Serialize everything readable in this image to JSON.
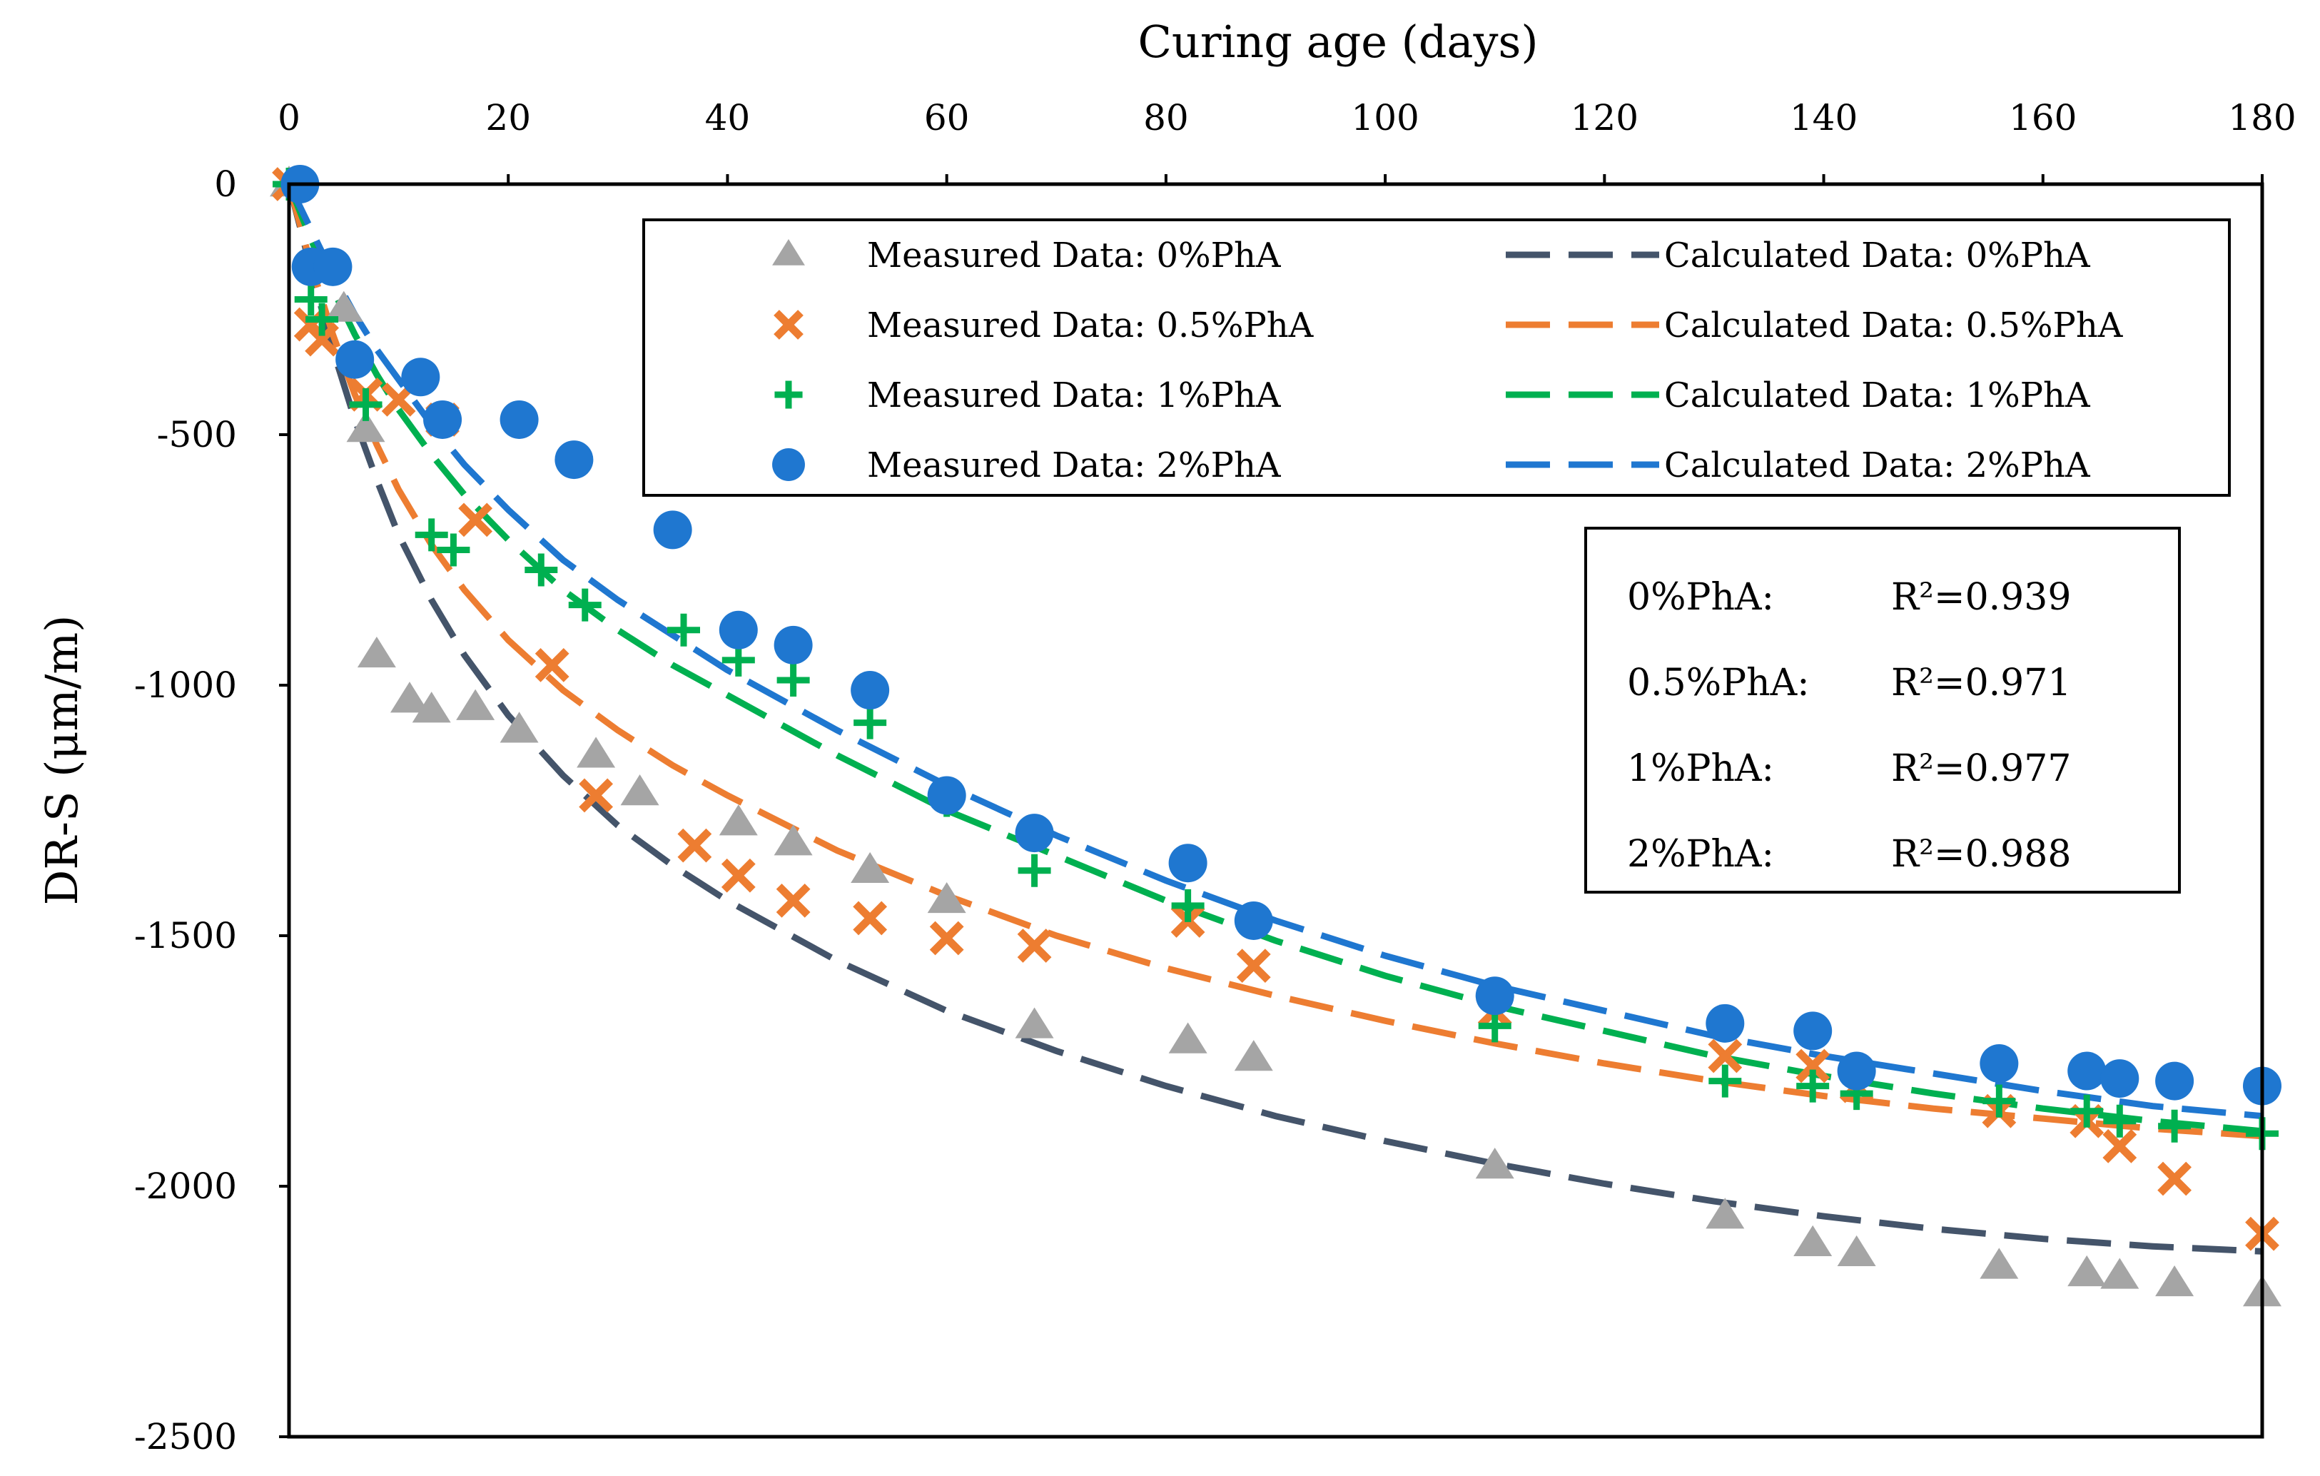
{
  "chart_data": {
    "type": "scatter",
    "title": "",
    "xlabel": "Curing age (days)",
    "ylabel": "DR-S (μm/m)",
    "xlim": [
      0,
      180
    ],
    "ylim": [
      -2500,
      0
    ],
    "x_ticks": [
      0,
      20,
      40,
      60,
      80,
      100,
      120,
      140,
      160,
      180
    ],
    "y_ticks": [
      0,
      -500,
      -1000,
      -1500,
      -2000,
      -2500
    ],
    "x_tick_labels": [
      "0",
      "20",
      "40",
      "60",
      "80",
      "100",
      "120",
      "140",
      "160",
      "180"
    ],
    "y_tick_labels": [
      "0",
      "-500",
      "-1000",
      "-1500",
      "-2000",
      "-2500"
    ],
    "x_axis_position": "top",
    "grid": false,
    "legend_position": "top-right",
    "series": [
      {
        "name": "Measured Data: 0%PhA",
        "kind": "measured",
        "marker": "triangle",
        "color": "#a5a5a5",
        "x": [
          0,
          5,
          7,
          8,
          11,
          13,
          17,
          21,
          28,
          32,
          41,
          46,
          53,
          60,
          68,
          82,
          88,
          110,
          131,
          139,
          143,
          156,
          164,
          167,
          172,
          180
        ],
        "y": [
          0,
          -250,
          -490,
          -940,
          -1030,
          -1050,
          -1045,
          -1090,
          -1140,
          -1215,
          -1275,
          -1315,
          -1370,
          -1430,
          -1680,
          -1710,
          -1745,
          -1960,
          -2060,
          -2115,
          -2135,
          -2160,
          -2175,
          -2180,
          -2195,
          -2215
        ]
      },
      {
        "name": "Measured Data: 0.5%PhA",
        "kind": "measured",
        "marker": "x",
        "color": "#ed7d31",
        "x": [
          0,
          2,
          3,
          7,
          10,
          14,
          17,
          24,
          28,
          37,
          41,
          46,
          53,
          60,
          68,
          82,
          88,
          110,
          131,
          139,
          143,
          156,
          164,
          167,
          172,
          180
        ],
        "y": [
          0,
          -280,
          -310,
          -420,
          -430,
          -470,
          -670,
          -960,
          -1220,
          -1320,
          -1380,
          -1430,
          -1465,
          -1505,
          -1520,
          -1470,
          -1560,
          -1650,
          -1740,
          -1760,
          -1800,
          -1850,
          -1870,
          -1920,
          -1985,
          -2095
        ]
      },
      {
        "name": "Measured Data: 1%PhA",
        "kind": "measured",
        "marker": "plus",
        "color": "#00b050",
        "x": [
          0,
          2,
          3,
          7,
          13,
          15,
          23,
          27,
          36,
          41,
          46,
          53,
          60,
          68,
          82,
          110,
          131,
          139,
          143,
          156,
          164,
          167,
          172,
          180
        ],
        "y": [
          0,
          -230,
          -270,
          -440,
          -700,
          -730,
          -770,
          -840,
          -890,
          -950,
          -990,
          -1075,
          -1230,
          -1370,
          -1440,
          -1680,
          -1790,
          -1800,
          -1815,
          -1830,
          -1850,
          -1870,
          -1880,
          -1895
        ]
      },
      {
        "name": "Measured Data: 2%PhA",
        "kind": "measured",
        "marker": "circle",
        "color": "#1f77d0",
        "x": [
          1,
          2,
          4,
          6,
          12,
          14,
          21,
          26,
          35,
          41,
          46,
          53,
          60,
          68,
          82,
          88,
          110,
          131,
          139,
          143,
          156,
          164,
          167,
          172,
          180
        ],
        "y": [
          0,
          -165,
          -165,
          -350,
          -385,
          -470,
          -470,
          -550,
          -690,
          -890,
          -920,
          -1010,
          -1220,
          -1295,
          -1355,
          -1470,
          -1620,
          -1675,
          -1690,
          -1770,
          -1755,
          -1770,
          -1785,
          -1790,
          -1800
        ]
      },
      {
        "name": "Calculated Data: 0%PhA",
        "kind": "calculated",
        "style": "dashed",
        "color": "#44546a",
        "x": [
          0,
          2,
          4,
          6,
          8,
          10,
          13,
          16,
          20,
          25,
          30,
          35,
          40,
          50,
          60,
          70,
          80,
          90,
          100,
          110,
          120,
          130,
          140,
          150,
          160,
          170,
          180
        ],
        "y": [
          0,
          -170,
          -330,
          -470,
          -590,
          -700,
          -830,
          -940,
          -1060,
          -1180,
          -1280,
          -1360,
          -1430,
          -1550,
          -1650,
          -1730,
          -1800,
          -1860,
          -1910,
          -1955,
          -1995,
          -2030,
          -2060,
          -2085,
          -2105,
          -2120,
          -2130
        ]
      },
      {
        "name": "Calculated Data: 0.5%PhA",
        "kind": "calculated",
        "style": "dashed",
        "color": "#ed7d31",
        "x": [
          0,
          2,
          4,
          6,
          8,
          10,
          13,
          16,
          20,
          25,
          30,
          35,
          40,
          50,
          60,
          70,
          80,
          90,
          100,
          110,
          120,
          130,
          140,
          150,
          160,
          170,
          180
        ],
        "y": [
          0,
          -160,
          -300,
          -420,
          -520,
          -610,
          -720,
          -810,
          -910,
          -1010,
          -1090,
          -1160,
          -1220,
          -1330,
          -1420,
          -1500,
          -1565,
          -1620,
          -1670,
          -1715,
          -1755,
          -1790,
          -1820,
          -1845,
          -1865,
          -1885,
          -1900
        ]
      },
      {
        "name": "Calculated Data: 1%PhA",
        "kind": "calculated",
        "style": "dashed",
        "color": "#00b050",
        "x": [
          0,
          2,
          4,
          6,
          8,
          10,
          13,
          16,
          20,
          25,
          30,
          35,
          40,
          50,
          60,
          70,
          80,
          90,
          100,
          110,
          120,
          130,
          140,
          150,
          160,
          170,
          180
        ],
        "y": [
          0,
          -110,
          -210,
          -300,
          -380,
          -450,
          -540,
          -620,
          -710,
          -810,
          -890,
          -960,
          -1020,
          -1140,
          -1250,
          -1340,
          -1430,
          -1510,
          -1580,
          -1640,
          -1690,
          -1740,
          -1780,
          -1815,
          -1845,
          -1870,
          -1890
        ]
      },
      {
        "name": "Calculated Data: 2%PhA",
        "kind": "calculated",
        "style": "dashed",
        "color": "#1f77d0",
        "x": [
          0,
          2,
          4,
          6,
          8,
          10,
          13,
          16,
          20,
          25,
          30,
          35,
          40,
          50,
          60,
          70,
          80,
          90,
          100,
          110,
          120,
          130,
          140,
          150,
          160,
          170,
          180
        ],
        "y": [
          0,
          -90,
          -180,
          -260,
          -330,
          -390,
          -480,
          -560,
          -650,
          -750,
          -830,
          -900,
          -970,
          -1090,
          -1200,
          -1300,
          -1390,
          -1470,
          -1540,
          -1600,
          -1650,
          -1700,
          -1740,
          -1775,
          -1810,
          -1840,
          -1860
        ]
      }
    ],
    "annotations": [
      {
        "label": "0%PhA:",
        "value": "R²=0.939"
      },
      {
        "label": "0.5%PhA:",
        "value": "R²=0.971"
      },
      {
        "label": "1%PhA:",
        "value": "R²=0.977"
      },
      {
        "label": "2%PhA:",
        "value": "R²=0.988"
      }
    ]
  }
}
